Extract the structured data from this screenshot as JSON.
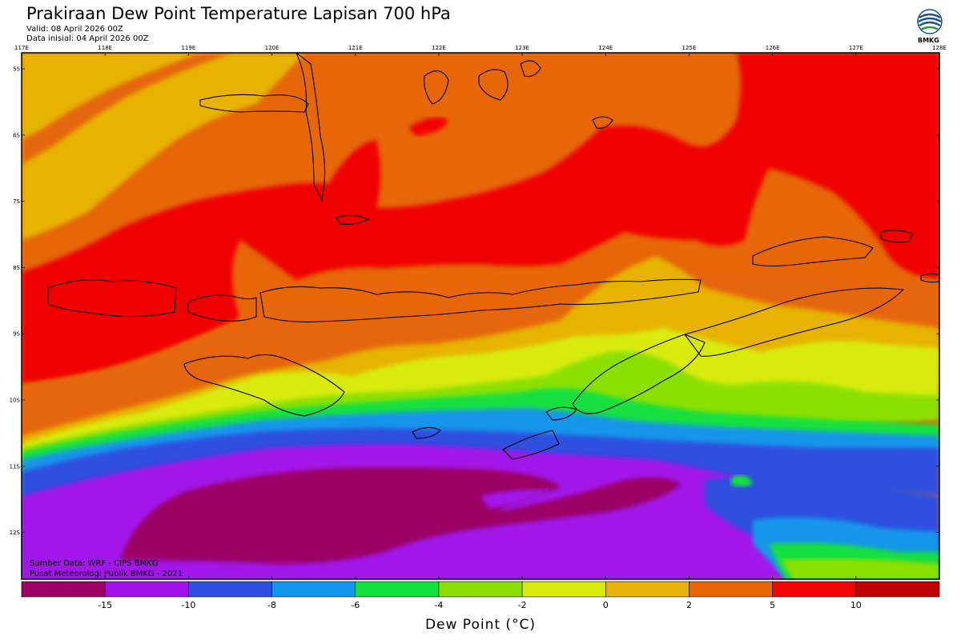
{
  "header": {
    "title": "Prakiraan Dew Point Temperature Lapisan 700 hPa",
    "valid": "Valid: 08 April 2026 00Z",
    "initial": "Data inisial: 04 April 2026 00Z"
  },
  "logo": {
    "text": "BMKG",
    "icon": "bmkg-logo-icon"
  },
  "credits": {
    "source": "Sumber Data: WRF - CIPS BMKG",
    "publisher": "Pusat Meteorologi Publik BMKG - 2021"
  },
  "map": {
    "lon_labels": [
      "117E",
      "118E",
      "119E",
      "120E",
      "121E",
      "122E",
      "123E",
      "124E",
      "125E",
      "126E",
      "127E",
      "128E"
    ],
    "lat_labels": [
      "5S",
      "6S",
      "7S",
      "8S",
      "9S",
      "10S",
      "11S",
      "12S"
    ],
    "colors": {
      "c_m15": "#9b0064",
      "c_m10": "#a213ea",
      "c_m8": "#2f4fe0",
      "c_m6": "#1496ea",
      "c_m4": "#12e03f",
      "c_m2": "#8ce000",
      "c_0": "#d9eb0f",
      "c_2": "#e7b306",
      "c_5": "#e66608",
      "c_10": "#f00404",
      "c_max": "#c00000"
    }
  },
  "colorbar": {
    "title": "Dew Point (°C)",
    "labels": [
      "-15",
      "-10",
      "-8",
      "-6",
      "-4",
      "-2",
      "0",
      "2",
      "5",
      "10"
    ],
    "colors": [
      "#9b0064",
      "#a213ea",
      "#2f4fe0",
      "#1496ea",
      "#12e03f",
      "#8ce000",
      "#d9eb0f",
      "#e7b306",
      "#e66608",
      "#f00404",
      "#c00000"
    ]
  }
}
